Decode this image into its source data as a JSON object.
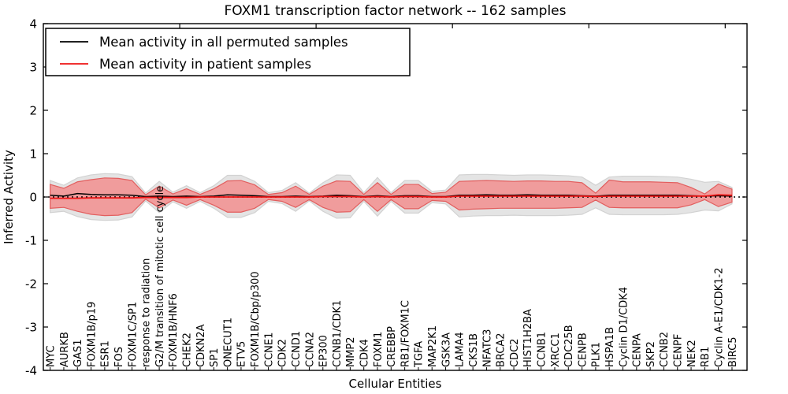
{
  "figure": {
    "title": "FOXM1 transcription factor network -- 162 samples",
    "xlabel": "Cellular Entities",
    "ylabel": "Inferred Activity"
  },
  "legend": {
    "position": "upper left",
    "entries": [
      {
        "label": "Mean activity in all permuted samples",
        "color": "#000000"
      },
      {
        "label": "Mean activity in patient samples",
        "color": "#ee1515"
      }
    ]
  },
  "colors": {
    "permuted_band_fill": "#e4e4e4",
    "permuted_band_edge": "#d2d2d2",
    "patient_band_fill": "#f09c9c",
    "patient_band_edge": "#e25e5e",
    "mean_permuted_line": "#000000",
    "mean_patient_line": "#ee1515",
    "zero_line": "#000000",
    "frame": "#000000"
  },
  "chart_data": {
    "type": "area",
    "title": "FOXM1 transcription factor network -- 162 samples",
    "xlabel": "Cellular Entities",
    "ylabel": "Inferred Activity",
    "ylim": [
      -4,
      4
    ],
    "yticks": [
      -4,
      -3,
      -2,
      -1,
      0,
      1,
      2,
      3,
      4
    ],
    "top_axis_ticks": [
      10,
      20,
      30,
      40,
      50
    ],
    "grid": false,
    "zero_line": 0,
    "legend_position": "upper left",
    "categories": [
      "MYC",
      "AURKB",
      "GAS1",
      "FOXM1B/p19",
      "ESR1",
      "FOS",
      "FOXM1C/SP1",
      "response to radiation",
      "G2/M transition of mitotic cell cycle",
      "FOXM1B/HNF6",
      "CHEK2",
      "CDKN2A",
      "SP1",
      "ONECUT1",
      "ETV5",
      "FOXM1B/Cbp/p300",
      "CCNE1",
      "CDK2",
      "CCND1",
      "CCNA2",
      "EP300",
      "CCNB1/CDK1",
      "MMP2",
      "CDK4",
      "FOXM1",
      "CREBBP",
      "RB1/FOXM1C",
      "TGFA",
      "MAP2K1",
      "GSK3A",
      "LAMA4",
      "CKS1B",
      "NFATC3",
      "BRCA2",
      "CDC2",
      "HIST1H2BA",
      "CCNB1",
      "XRCC1",
      "CDC25B",
      "CENPB",
      "PLK1",
      "HSPA1B",
      "Cyclin D1/CDK4",
      "CENPA",
      "SKP2",
      "CCNB2",
      "CENPF",
      "NEK2",
      "RB1",
      "Cyclin A-E1/CDK1-2",
      "BIRC5"
    ],
    "series": [
      {
        "name": "permuted_range_upper",
        "values": [
          0.38,
          0.27,
          0.44,
          0.51,
          0.54,
          0.53,
          0.47,
          0.09,
          0.36,
          0.11,
          0.26,
          0.1,
          0.26,
          0.5,
          0.5,
          0.36,
          0.1,
          0.15,
          0.33,
          0.09,
          0.33,
          0.51,
          0.5,
          0.1,
          0.45,
          0.1,
          0.38,
          0.38,
          0.13,
          0.16,
          0.51,
          0.52,
          0.52,
          0.51,
          0.5,
          0.51,
          0.51,
          0.5,
          0.49,
          0.46,
          0.27,
          0.46,
          0.48,
          0.48,
          0.48,
          0.47,
          0.46,
          0.41,
          0.34,
          0.36,
          0.22
        ]
      },
      {
        "name": "permuted_range_lower",
        "values": [
          -0.36,
          -0.33,
          -0.45,
          -0.52,
          -0.54,
          -0.53,
          -0.46,
          -0.09,
          -0.36,
          -0.11,
          -0.26,
          -0.1,
          -0.26,
          -0.47,
          -0.47,
          -0.36,
          -0.1,
          -0.15,
          -0.33,
          -0.09,
          -0.33,
          -0.49,
          -0.48,
          -0.1,
          -0.44,
          -0.1,
          -0.37,
          -0.37,
          -0.13,
          -0.16,
          -0.46,
          -0.44,
          -0.43,
          -0.43,
          -0.42,
          -0.43,
          -0.43,
          -0.43,
          -0.42,
          -0.4,
          -0.25,
          -0.4,
          -0.41,
          -0.41,
          -0.41,
          -0.41,
          -0.4,
          -0.36,
          -0.3,
          -0.32,
          -0.16
        ]
      },
      {
        "name": "patient_range_upper",
        "values": [
          0.29,
          0.2,
          0.35,
          0.4,
          0.44,
          0.43,
          0.38,
          0.05,
          0.25,
          0.07,
          0.19,
          0.06,
          0.19,
          0.37,
          0.38,
          0.28,
          0.06,
          0.1,
          0.25,
          0.06,
          0.25,
          0.37,
          0.36,
          0.06,
          0.33,
          0.06,
          0.29,
          0.29,
          0.08,
          0.11,
          0.36,
          0.37,
          0.38,
          0.37,
          0.36,
          0.37,
          0.37,
          0.36,
          0.36,
          0.33,
          0.09,
          0.39,
          0.35,
          0.35,
          0.35,
          0.34,
          0.33,
          0.22,
          0.07,
          0.3,
          0.18
        ]
      },
      {
        "name": "patient_range_lower",
        "values": [
          -0.26,
          -0.24,
          -0.33,
          -0.4,
          -0.43,
          -0.42,
          -0.36,
          -0.05,
          -0.25,
          -0.07,
          -0.19,
          -0.06,
          -0.19,
          -0.35,
          -0.35,
          -0.26,
          -0.06,
          -0.1,
          -0.24,
          -0.06,
          -0.24,
          -0.35,
          -0.34,
          -0.06,
          -0.33,
          -0.06,
          -0.27,
          -0.27,
          -0.08,
          -0.1,
          -0.3,
          -0.28,
          -0.27,
          -0.26,
          -0.26,
          -0.26,
          -0.26,
          -0.26,
          -0.25,
          -0.24,
          -0.07,
          -0.24,
          -0.25,
          -0.25,
          -0.25,
          -0.25,
          -0.25,
          -0.18,
          -0.06,
          -0.22,
          -0.12
        ]
      },
      {
        "name": "mean_permuted",
        "values": [
          0.04,
          0.02,
          0.08,
          0.06,
          0.05,
          0.05,
          0.04,
          0.01,
          0.02,
          0.01,
          0.02,
          0.01,
          0.02,
          0.05,
          0.04,
          0.03,
          0.01,
          0.01,
          0.02,
          0.01,
          0.02,
          0.04,
          0.03,
          0.01,
          0.03,
          0.01,
          0.03,
          0.03,
          0.01,
          0.01,
          0.04,
          0.04,
          0.05,
          0.04,
          0.04,
          0.05,
          0.04,
          0.04,
          0.04,
          0.03,
          0.02,
          0.04,
          0.04,
          0.04,
          0.04,
          0.04,
          0.04,
          0.03,
          0.02,
          0.03,
          0.02
        ]
      },
      {
        "name": "mean_patient",
        "values": [
          -0.03,
          -0.03,
          -0.03,
          -0.02,
          -0.02,
          -0.02,
          -0.02,
          -0.01,
          -0.01,
          -0.01,
          -0.01,
          0,
          0,
          0,
          0,
          0,
          0,
          0,
          0,
          0,
          0.01,
          0.01,
          0.01,
          0,
          0.01,
          0,
          0.01,
          0.01,
          0,
          0,
          0.02,
          0.02,
          0.02,
          0.02,
          0.02,
          0.02,
          0.02,
          0.02,
          0.02,
          0.02,
          0.01,
          0.02,
          0.02,
          0.02,
          0.02,
          0.02,
          0.02,
          0.02,
          0.02,
          0.05,
          0.04
        ]
      }
    ]
  }
}
